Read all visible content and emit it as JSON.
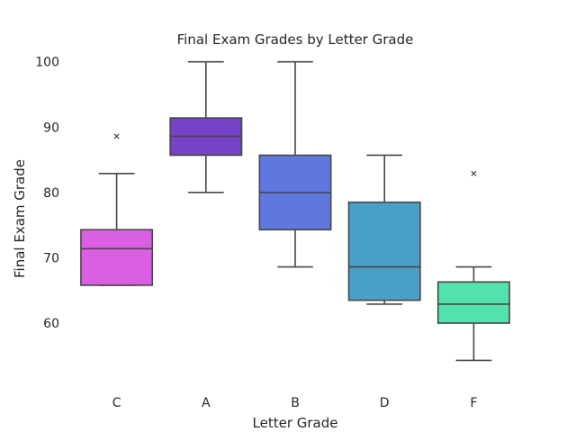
{
  "chart_data": {
    "type": "box",
    "title": "Final Exam Grades by Letter Grade",
    "xlabel": "Letter Grade",
    "ylabel": "Final Exam Grade",
    "categories": [
      "C",
      "A",
      "B",
      "D",
      "F"
    ],
    "ylim": [
      50.5,
      104.5
    ],
    "yticks": [
      60,
      70,
      80,
      90,
      100
    ],
    "grid": false,
    "boxes": [
      {
        "category": "C",
        "whisker_low": 65.8,
        "q1": 65.8,
        "median": 71.4,
        "q3": 74.3,
        "whisker_high": 82.9,
        "outliers": [
          88.6
        ],
        "color": "#db5fe3"
      },
      {
        "category": "A",
        "whisker_low": 80.0,
        "q1": 85.7,
        "median": 88.6,
        "q3": 91.4,
        "whisker_high": 100.0,
        "outliers": [],
        "color": "#7642c8"
      },
      {
        "category": "B",
        "whisker_low": 68.6,
        "q1": 74.3,
        "median": 80.0,
        "q3": 85.7,
        "whisker_high": 100.0,
        "outliers": [],
        "color": "#5e78e0"
      },
      {
        "category": "D",
        "whisker_low": 62.9,
        "q1": 63.5,
        "median": 68.6,
        "q3": 78.5,
        "whisker_high": 85.7,
        "outliers": [],
        "color": "#48a0c6"
      },
      {
        "category": "F",
        "whisker_low": 54.3,
        "q1": 60.0,
        "median": 62.9,
        "q3": 66.3,
        "whisker_high": 68.6,
        "outliers": [
          82.9
        ],
        "color": "#52e3ad"
      }
    ]
  }
}
